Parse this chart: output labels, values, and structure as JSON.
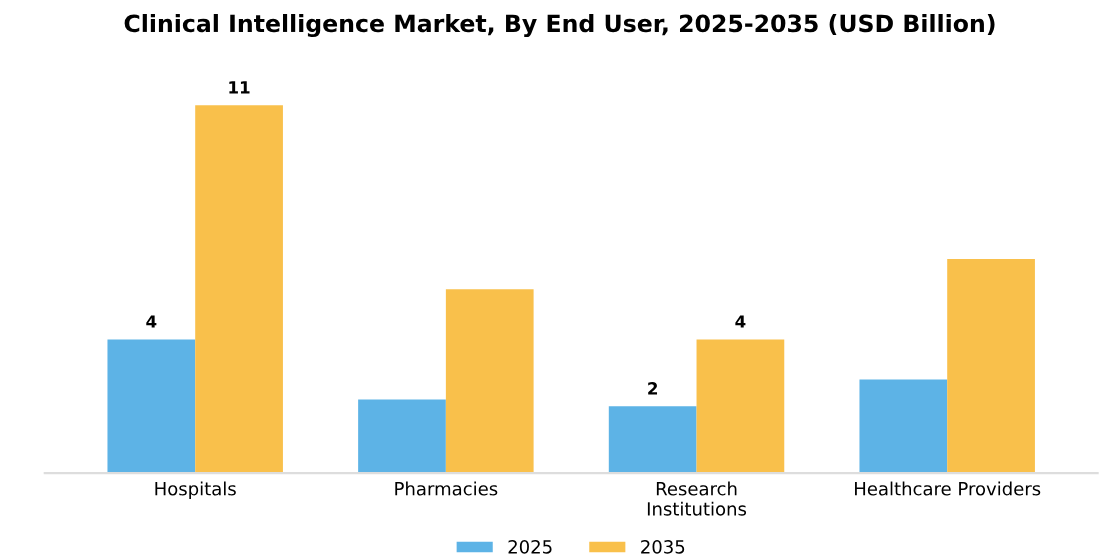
{
  "chart_data": {
    "type": "bar",
    "title": "Clinical Intelligence Market, By End User, 2025-2035 (USD Billion)",
    "categories": [
      "Hospitals",
      "Pharmacies",
      "Research\nInstitutions",
      "Healthcare Providers"
    ],
    "series": [
      {
        "name": "2025",
        "color": "#5db3e6",
        "values": [
          4,
          2.2,
          2,
          2.8
        ],
        "value_labels": [
          "4",
          null,
          "2",
          null
        ]
      },
      {
        "name": "2035",
        "color": "#f9c04b",
        "values": [
          11,
          5.5,
          4,
          6.4
        ],
        "value_labels": [
          "11",
          null,
          "4",
          null
        ]
      }
    ],
    "legend": "bottom",
    "grid": false
  }
}
